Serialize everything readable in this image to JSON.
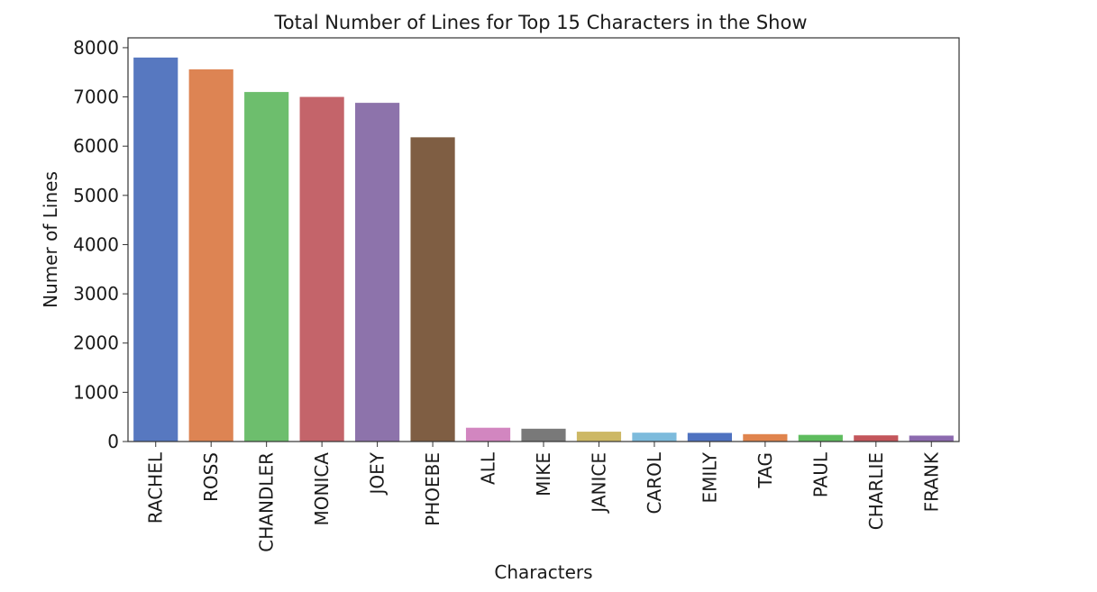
{
  "chart_data": {
    "type": "bar",
    "title": "Total Number of Lines for Top 15 Characters in the Show",
    "xlabel": "Characters",
    "ylabel": "Numer of Lines",
    "categories": [
      "RACHEL",
      "ROSS",
      "CHANDLER",
      "MONICA",
      "JOEY",
      "PHOEBE",
      "ALL",
      "MIKE",
      "JANICE",
      "CAROL",
      "EMILY",
      "TAG",
      "PAUL",
      "CHARLIE",
      "FRANK"
    ],
    "values": [
      7800,
      7560,
      7100,
      7000,
      6880,
      6180,
      280,
      260,
      200,
      180,
      175,
      150,
      135,
      125,
      120
    ],
    "colors": [
      "#5778c0",
      "#dd8453",
      "#6dbe6d",
      "#c4646a",
      "#8d73ab",
      "#7f5e43",
      "#d286c0",
      "#797979",
      "#cdb865",
      "#7dbbdc",
      "#4f72c0",
      "#e0844d",
      "#5ebc5e",
      "#c3565b",
      "#8c6aaf"
    ],
    "ylim": [
      0,
      8200
    ],
    "yticks": [
      0,
      1000,
      2000,
      3000,
      4000,
      5000,
      6000,
      7000,
      8000
    ],
    "grid": false,
    "legend": "none"
  }
}
